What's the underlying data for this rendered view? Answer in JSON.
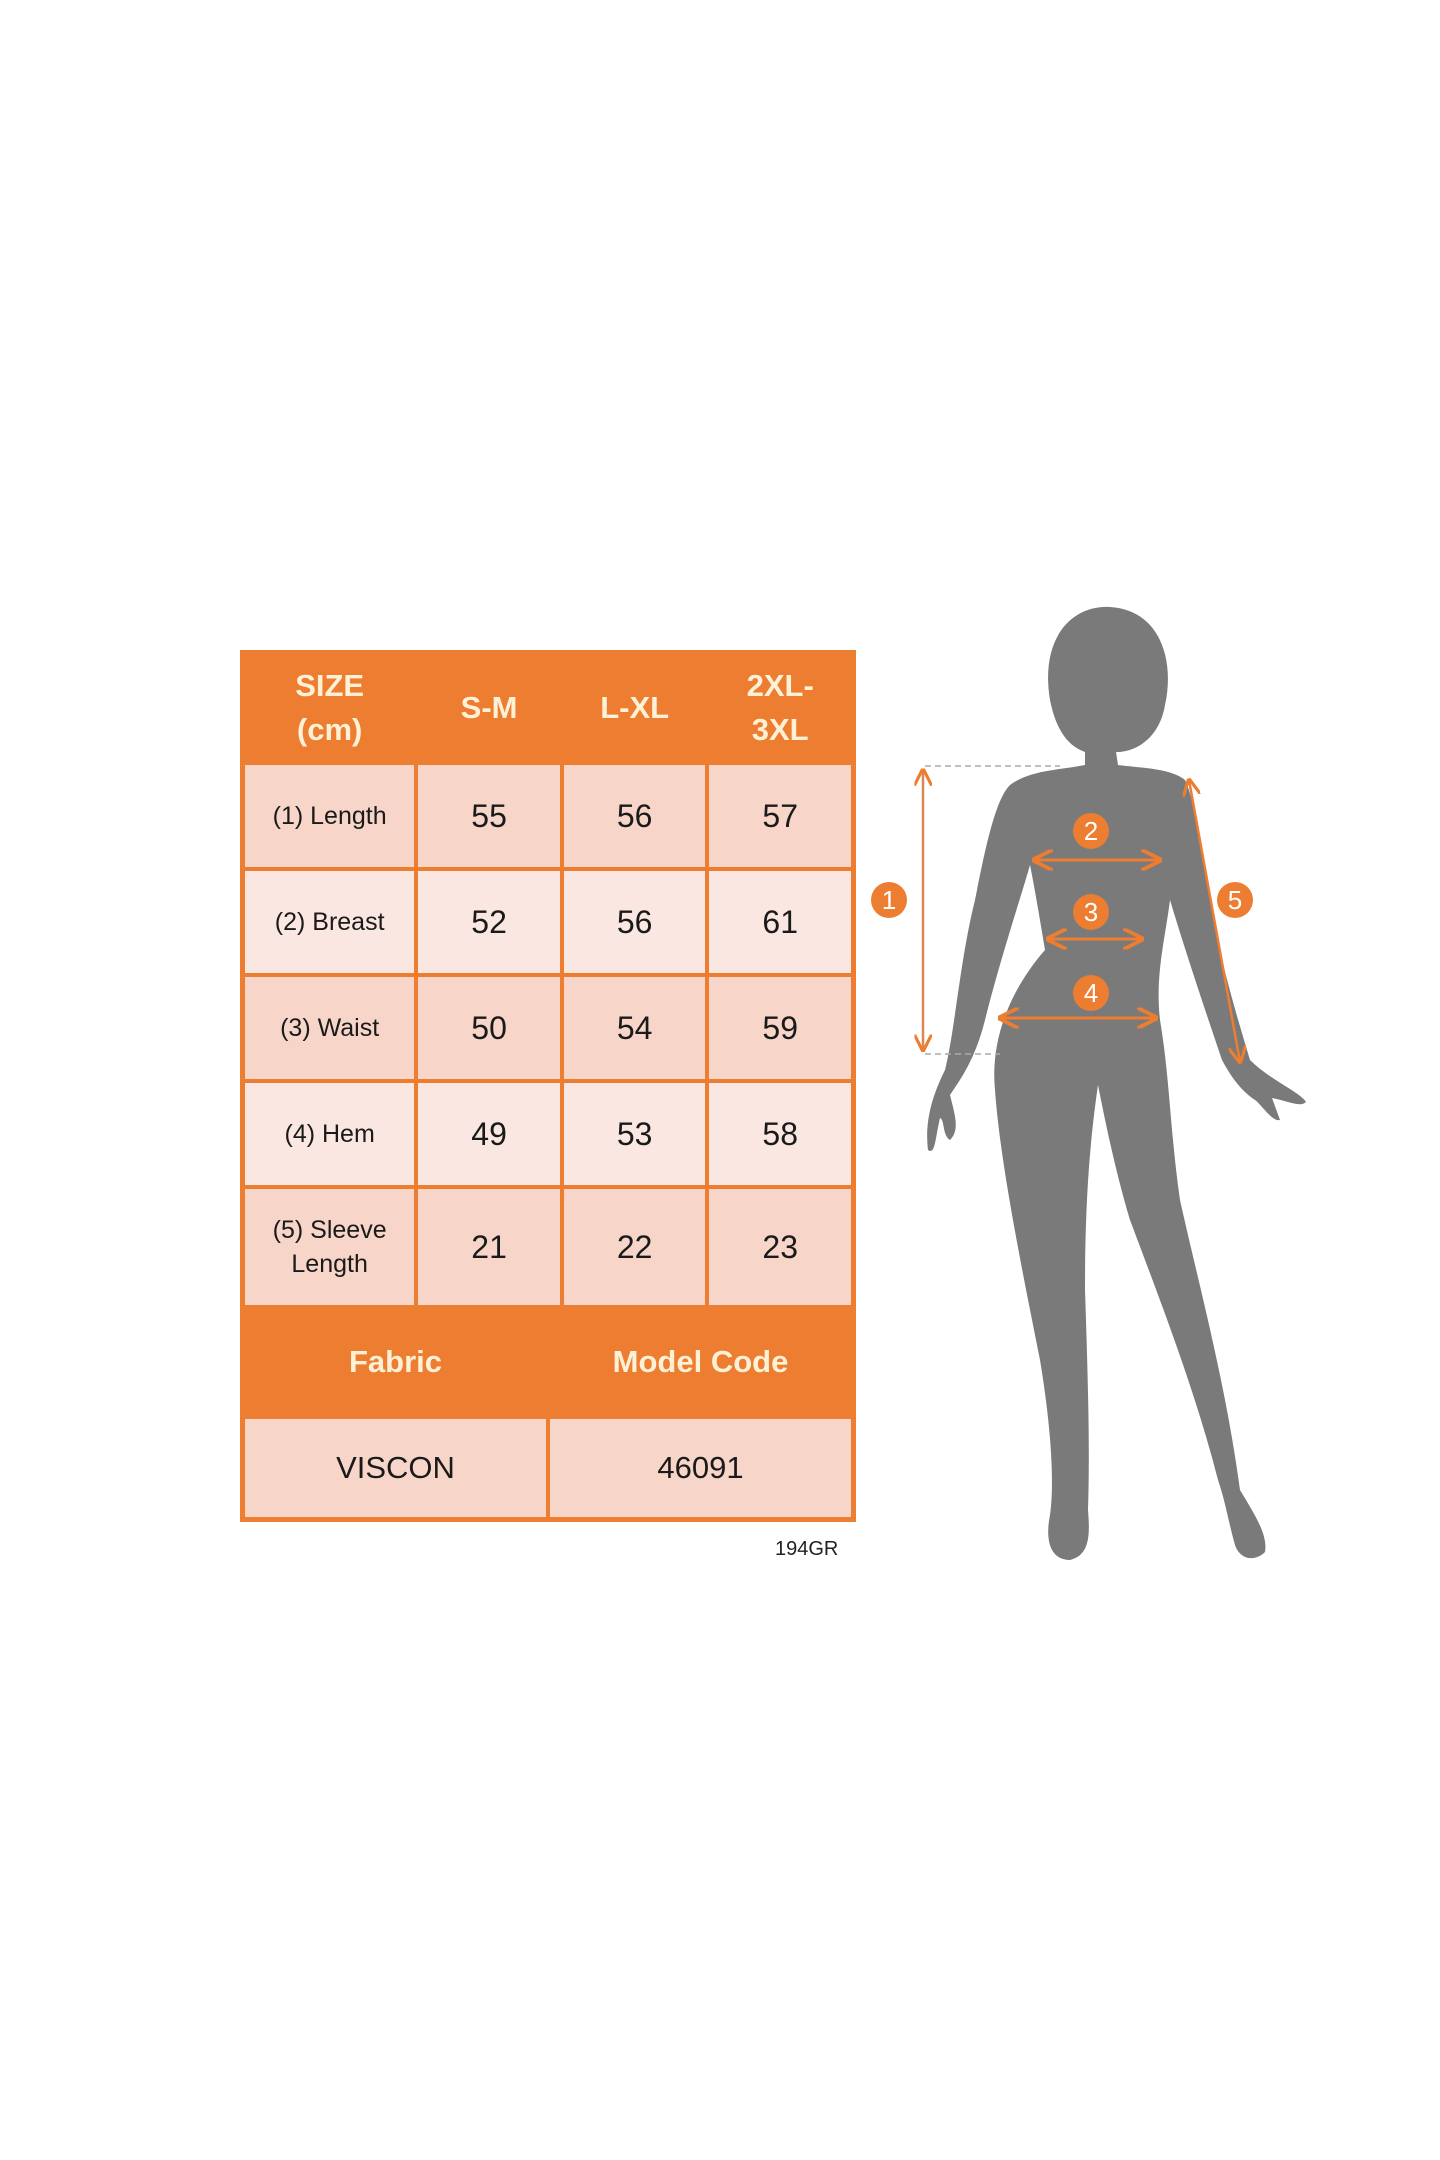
{
  "size_chart": {
    "header": [
      "SIZE\n(cm)",
      "S-M",
      "L-XL",
      "2XL-\n3XL"
    ],
    "header_lines": [
      [
        "SIZE",
        "(cm)"
      ],
      [
        "S-M"
      ],
      [
        "L-XL"
      ],
      [
        "2XL-",
        "3XL"
      ]
    ],
    "rows": [
      {
        "label": "(1) Length",
        "values": [
          "55",
          "56",
          "57"
        ]
      },
      {
        "label": "(2) Breast",
        "values": [
          "52",
          "56",
          "61"
        ]
      },
      {
        "label": "(3) Waist",
        "values": [
          "50",
          "54",
          "59"
        ]
      },
      {
        "label": "(4) Hem",
        "values": [
          "49",
          "53",
          "58"
        ]
      },
      {
        "label": "(5) Sleeve Length",
        "label_lines": [
          "(5) Sleeve",
          "Length"
        ],
        "values": [
          "21",
          "22",
          "23"
        ]
      }
    ],
    "fabric_label": "Fabric",
    "model_code_label": "Model Code",
    "fabric_value": "VISCON",
    "model_code_value": "46091"
  },
  "footer_code": "194GR",
  "figure": {
    "markers": [
      "1",
      "2",
      "3",
      "4",
      "5"
    ],
    "silhouette_color": "#7A7A7A",
    "accent_color": "#ED7D31"
  },
  "colors": {
    "header_bg": "#ED7D31",
    "header_text": "#FFF1D6",
    "cell_dark": "#F7D6C9",
    "cell_light": "#FAE7E1"
  }
}
